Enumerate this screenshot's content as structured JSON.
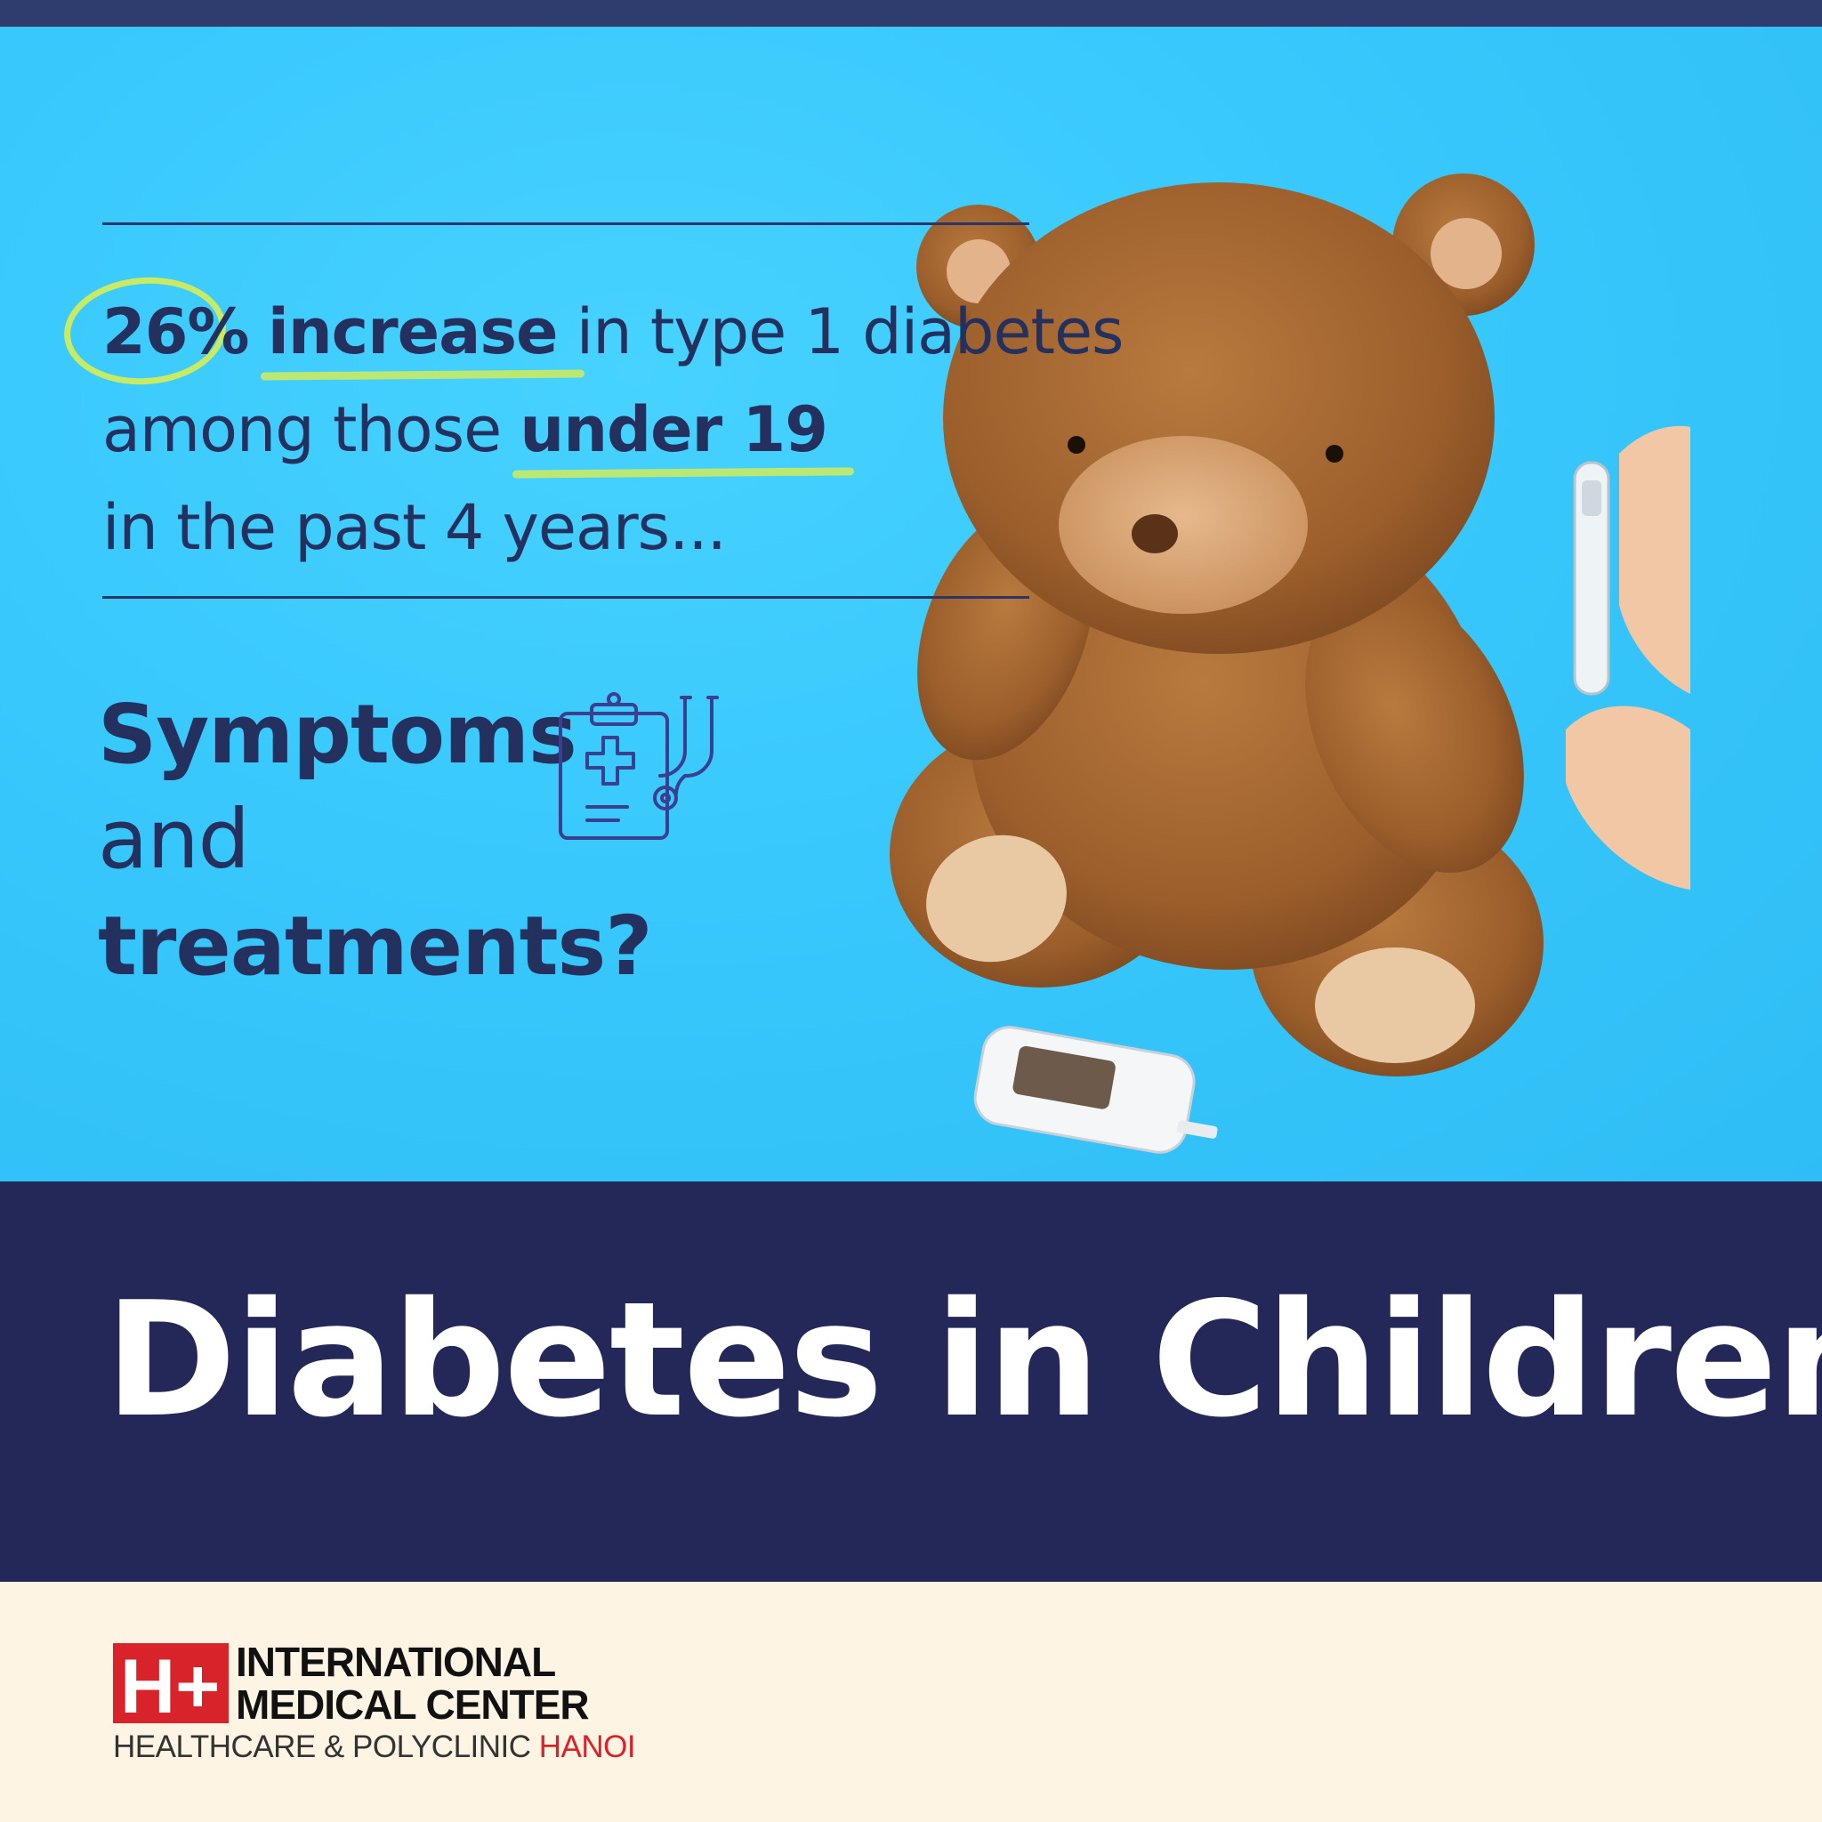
{
  "headline": {
    "stat_pct": "26%",
    "stat_increase": "increase",
    "stat_rest": " in type 1 diabetes",
    "line2_pre": "among those ",
    "line2_bold": "under 19",
    "line3": "in the past 4 years..."
  },
  "question": {
    "line1": "Symptoms",
    "line2": "and",
    "line3": "treatments?"
  },
  "title": "Diabetes in Children",
  "logo": {
    "mark": "H+",
    "line1": "INTERNATIONAL",
    "line2": "MEDICAL CENTER",
    "sub_main": "HEALTHCARE & POLYCLINIC ",
    "sub_accent": "HANOI"
  },
  "colors": {
    "hero_bg": "#38c8fc",
    "navy": "#232858",
    "highlight": "#c9ea63",
    "brand_red": "#d8232a",
    "footer_bg": "#fdf4e4"
  },
  "icons": {
    "medical": "clipboard-stethoscope-icon",
    "photo": "teddy-bear-glucose-meter"
  }
}
